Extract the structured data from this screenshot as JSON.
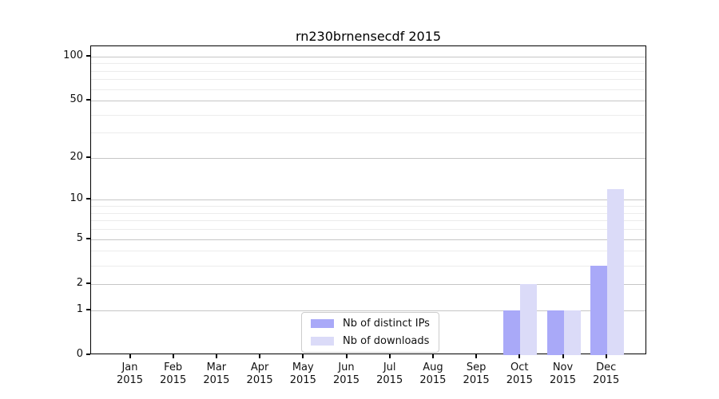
{
  "title": "rn230brnensecdf 2015",
  "chart_data": {
    "type": "bar",
    "title": "rn230brnensecdf 2015",
    "categories": [
      "Jan",
      "Feb",
      "Mar",
      "Apr",
      "May",
      "Jun",
      "Jul",
      "Aug",
      "Sep",
      "Oct",
      "Nov",
      "Dec"
    ],
    "year": "2015",
    "series": [
      {
        "name": "Nb of distinct IPs",
        "color": "#a9a9f8",
        "values": [
          0,
          0,
          0,
          0,
          0,
          0,
          0,
          0,
          0,
          1,
          1,
          3
        ]
      },
      {
        "name": "Nb of downloads",
        "color": "#dbdbf8",
        "values": [
          0,
          0,
          0,
          0,
          0,
          0,
          0,
          0,
          0,
          2,
          1,
          12
        ]
      }
    ],
    "xlabel": "",
    "ylabel": "",
    "y_axis": {
      "scale": "log1p",
      "ticks": [
        0,
        1,
        2,
        5,
        10,
        20,
        50,
        100
      ],
      "minor_ticks": [
        3,
        4,
        6,
        7,
        8,
        9,
        30,
        40,
        60,
        70,
        80,
        90
      ],
      "ylim": [
        0,
        117
      ]
    },
    "grid": {
      "major_color": "#c6c6c6",
      "minor_color": "#ececec",
      "on": true
    },
    "legend_position": "bottom-center"
  }
}
